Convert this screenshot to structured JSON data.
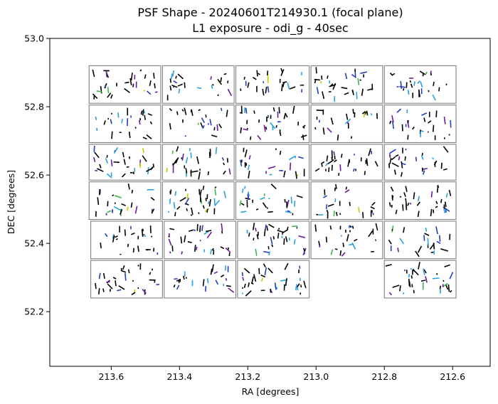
{
  "chart_data": {
    "type": "scatter",
    "title_line1": "PSF Shape - 20240601T214930.1 (focal plane)",
    "title_line2": "L1 exposure - odi_g - 40sec",
    "xlabel": "RA [degrees]",
    "ylabel": "DEC [degrees]",
    "xlim": [
      213.78,
      212.49
    ],
    "ylim": [
      52.04,
      53.0
    ],
    "x_inverted": true,
    "grid": false,
    "xticks": [
      213.6,
      213.4,
      213.2,
      213.0,
      212.8,
      212.6
    ],
    "xtick_labels": [
      "213.6",
      "213.4",
      "213.2",
      "213.0",
      "212.8",
      "212.6"
    ],
    "yticks": [
      52.2,
      52.4,
      52.6,
      52.8,
      53.0
    ],
    "ytick_labels": [
      "52.2",
      "52.4",
      "52.6",
      "52.8",
      "53.0"
    ],
    "ota_outline_color": "#808080",
    "whisker_colors": [
      "#000000",
      "#1f3fbf",
      "#2aa0dc",
      "#6a1b9a",
      "#3cb44b",
      "#c8c800"
    ],
    "ota_cells": [
      {
        "ra": [
          213.665,
          213.455
        ],
        "dec": [
          52.92,
          52.81
        ]
      },
      {
        "ra": [
          213.45,
          213.24
        ],
        "dec": [
          52.92,
          52.81
        ]
      },
      {
        "ra": [
          213.235,
          213.02
        ],
        "dec": [
          52.92,
          52.81
        ]
      },
      {
        "ra": [
          213.015,
          212.805
        ],
        "dec": [
          52.92,
          52.81
        ]
      },
      {
        "ra": [
          212.8,
          212.59
        ],
        "dec": [
          52.92,
          52.81
        ]
      },
      {
        "ra": [
          213.665,
          213.455
        ],
        "dec": [
          52.805,
          52.695
        ]
      },
      {
        "ra": [
          213.45,
          213.24
        ],
        "dec": [
          52.805,
          52.695
        ]
      },
      {
        "ra": [
          213.235,
          213.02
        ],
        "dec": [
          52.805,
          52.695
        ]
      },
      {
        "ra": [
          213.015,
          212.805
        ],
        "dec": [
          52.805,
          52.695
        ]
      },
      {
        "ra": [
          212.8,
          212.59
        ],
        "dec": [
          52.805,
          52.695
        ]
      },
      {
        "ra": [
          213.665,
          213.455
        ],
        "dec": [
          52.69,
          52.585
        ]
      },
      {
        "ra": [
          213.45,
          213.24
        ],
        "dec": [
          52.69,
          52.585
        ]
      },
      {
        "ra": [
          213.235,
          213.02
        ],
        "dec": [
          52.69,
          52.585
        ]
      },
      {
        "ra": [
          213.015,
          212.805
        ],
        "dec": [
          52.69,
          52.585
        ]
      },
      {
        "ra": [
          212.8,
          212.59
        ],
        "dec": [
          52.69,
          52.585
        ]
      },
      {
        "ra": [
          213.665,
          213.455
        ],
        "dec": [
          52.58,
          52.47
        ]
      },
      {
        "ra": [
          213.45,
          213.24
        ],
        "dec": [
          52.58,
          52.47
        ]
      },
      {
        "ra": [
          213.235,
          213.02
        ],
        "dec": [
          52.58,
          52.47
        ]
      },
      {
        "ra": [
          213.015,
          212.805
        ],
        "dec": [
          52.58,
          52.47
        ]
      },
      {
        "ra": [
          212.8,
          212.59
        ],
        "dec": [
          52.58,
          52.47
        ]
      },
      {
        "ra": [
          213.66,
          213.45
        ],
        "dec": [
          52.465,
          52.355
        ]
      },
      {
        "ra": [
          213.445,
          213.235
        ],
        "dec": [
          52.465,
          52.355
        ]
      },
      {
        "ra": [
          213.23,
          213.02
        ],
        "dec": [
          52.465,
          52.355
        ]
      },
      {
        "ra": [
          213.015,
          212.805
        ],
        "dec": [
          52.465,
          52.355
        ]
      },
      {
        "ra": [
          212.8,
          212.59
        ],
        "dec": [
          52.465,
          52.355
        ]
      },
      {
        "ra": [
          213.66,
          213.45
        ],
        "dec": [
          52.35,
          52.24
        ]
      },
      {
        "ra": [
          213.445,
          213.235
        ],
        "dec": [
          52.35,
          52.24
        ]
      },
      {
        "ra": [
          213.23,
          213.02
        ],
        "dec": [
          52.35,
          52.24
        ]
      },
      {
        "ra": [
          212.8,
          212.59
        ],
        "dec": [
          52.35,
          52.24
        ]
      }
    ]
  }
}
